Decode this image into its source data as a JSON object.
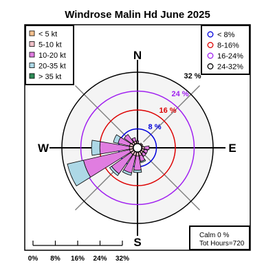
{
  "chart_data": {
    "type": "windrose",
    "title": "Windrose  Malin Hd June 2025",
    "directions": [
      "N",
      "NNE",
      "NE",
      "ENE",
      "E",
      "ESE",
      "SE",
      "SSE",
      "S",
      "SSW",
      "SW",
      "WSW",
      "W",
      "WNW",
      "NW",
      "NNW"
    ],
    "compass_labels": [
      "N",
      "E",
      "S",
      "W"
    ],
    "speed_bins": [
      {
        "label": "< 5  kt",
        "color": "#f5c18f"
      },
      {
        "label": "5-10 kt",
        "color": "#f0c0c8"
      },
      {
        "label": "10-20 kt",
        "color": "#e07de0"
      },
      {
        "label": "20-35 kt",
        "color": "#add8e6"
      },
      {
        "label": "> 35 kt",
        "color": "#2e8b57"
      }
    ],
    "frequency_rings": [
      {
        "label": "8 %",
        "value": 8,
        "color": "#0000dd"
      },
      {
        "label": "16 %",
        "value": 16,
        "color": "#dd0000"
      },
      {
        "label": "24 %",
        "value": 24,
        "color": "#a020f0"
      },
      {
        "label": "32 %",
        "value": 32,
        "color": "#000000"
      }
    ],
    "ring_legend": [
      {
        "label": "< 8%",
        "color": "#0000dd"
      },
      {
        "label": "8-16%",
        "color": "#dd0000"
      },
      {
        "label": "16-24%",
        "color": "#a020f0"
      },
      {
        "label": "24-32%",
        "color": "#000000"
      }
    ],
    "series_cumulative_percent": {
      "N": [
        0.5,
        1.0,
        1.5,
        1.5,
        1.5
      ],
      "NNE": [
        0.5,
        0.5,
        0.5,
        0.5,
        0.5
      ],
      "NE": [
        0.5,
        1.0,
        1.0,
        1.0,
        1.0
      ],
      "ENE": [
        0.5,
        1.0,
        1.0,
        1.0,
        1.0
      ],
      "E": [
        0.5,
        1.5,
        3.5,
        3.5,
        3.5
      ],
      "ESE": [
        0.5,
        1.5,
        3.0,
        3.0,
        3.0
      ],
      "SE": [
        0.5,
        1.5,
        3.0,
        3.0,
        3.0
      ],
      "SSE": [
        0.5,
        2.0,
        4.5,
        5.0,
        5.0
      ],
      "S": [
        0.5,
        2.0,
        8.0,
        9.0,
        9.0
      ],
      "SSW": [
        0.5,
        2.0,
        9.5,
        10.5,
        10.5
      ],
      "SW": [
        0.5,
        2.0,
        12.0,
        13.0,
        13.0
      ],
      "WSW": [
        0.5,
        2.0,
        22.0,
        29.0,
        29.0
      ],
      "W": [
        0.5,
        2.0,
        14.5,
        18.0,
        18.0
      ],
      "WNW": [
        0.5,
        2.0,
        7.0,
        9.0,
        9.0
      ],
      "NW": [
        0.5,
        1.5,
        5.5,
        5.5,
        5.5
      ],
      "NNW": [
        0.5,
        1.5,
        3.0,
        3.0,
        3.0
      ]
    },
    "rlim": [
      0,
      32
    ],
    "scale_bar": {
      "labels": [
        "0%",
        "8%",
        "16%",
        "24%",
        "32%"
      ]
    },
    "info_box": {
      "calm": "Calm 0 %",
      "hours": "Tot Hours=720"
    },
    "legend_placement": {
      "speed": "top-left",
      "rings": "top-right",
      "info": "bottom-right",
      "scale": "bottom-left"
    }
  }
}
